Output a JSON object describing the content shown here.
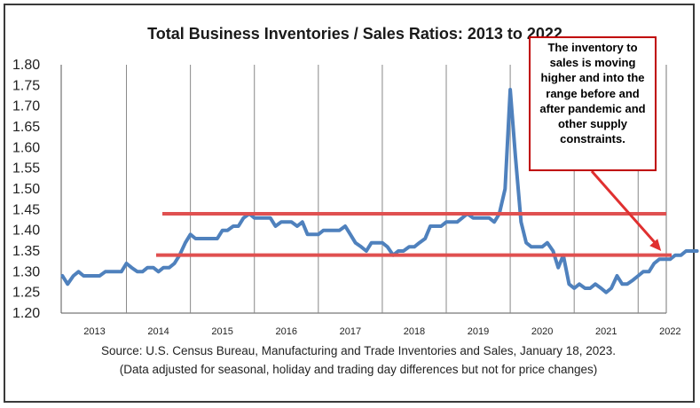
{
  "chart_data": {
    "type": "line",
    "title": "Total Business Inventories / Sales Ratios: 2013 to 2022",
    "xlabel": "",
    "ylabel": "",
    "ylim": [
      1.2,
      1.8
    ],
    "yticks": [
      "1.80",
      "1.75",
      "1.70",
      "1.65",
      "1.60",
      "1.55",
      "1.50",
      "1.45",
      "1.40",
      "1.35",
      "1.30",
      "1.25",
      "1.20"
    ],
    "xticks": [
      "2013",
      "2014",
      "2015",
      "2016",
      "2017",
      "2018",
      "2019",
      "2020",
      "2021",
      "2022"
    ],
    "grid": "vertical lines between years",
    "series": [
      {
        "color": "#4f81bd",
        "x": [
          2013.0,
          2013.08,
          2013.17,
          2013.25,
          2013.33,
          2013.42,
          2013.5,
          2013.58,
          2013.67,
          2013.75,
          2013.83,
          2013.92,
          2014.0,
          2014.08,
          2014.17,
          2014.25,
          2014.33,
          2014.42,
          2014.5,
          2014.58,
          2014.67,
          2014.75,
          2014.83,
          2014.92,
          2015.0,
          2015.08,
          2015.17,
          2015.25,
          2015.33,
          2015.42,
          2015.5,
          2015.58,
          2015.67,
          2015.75,
          2015.83,
          2015.92,
          2016.0,
          2016.08,
          2016.17,
          2016.25,
          2016.33,
          2016.42,
          2016.5,
          2016.58,
          2016.67,
          2016.75,
          2016.83,
          2016.92,
          2017.0,
          2017.08,
          2017.17,
          2017.25,
          2017.33,
          2017.42,
          2017.5,
          2017.58,
          2017.67,
          2017.75,
          2017.83,
          2017.92,
          2018.0,
          2018.08,
          2018.17,
          2018.25,
          2018.33,
          2018.42,
          2018.5,
          2018.58,
          2018.67,
          2018.75,
          2018.83,
          2018.92,
          2019.0,
          2019.08,
          2019.17,
          2019.25,
          2019.33,
          2019.42,
          2019.5,
          2019.58,
          2019.67,
          2019.75,
          2019.83,
          2019.92,
          2020.0,
          2020.08,
          2020.17,
          2020.25,
          2020.33,
          2020.42,
          2020.5,
          2020.58,
          2020.67,
          2020.75,
          2020.83,
          2020.92,
          2021.0,
          2021.08,
          2021.17,
          2021.25,
          2021.33,
          2021.42,
          2021.5,
          2021.58,
          2021.67,
          2021.75,
          2021.83,
          2021.92,
          2022.0,
          2022.08,
          2022.17,
          2022.25,
          2022.33,
          2022.42,
          2022.5,
          2022.58,
          2022.67,
          2022.75,
          2022.83,
          2022.92
        ],
        "y": [
          1.29,
          1.27,
          1.29,
          1.3,
          1.29,
          1.29,
          1.29,
          1.29,
          1.3,
          1.3,
          1.3,
          1.3,
          1.32,
          1.31,
          1.3,
          1.3,
          1.31,
          1.31,
          1.3,
          1.31,
          1.31,
          1.32,
          1.34,
          1.37,
          1.39,
          1.38,
          1.38,
          1.38,
          1.38,
          1.38,
          1.4,
          1.4,
          1.41,
          1.41,
          1.43,
          1.44,
          1.43,
          1.43,
          1.43,
          1.43,
          1.41,
          1.42,
          1.42,
          1.42,
          1.41,
          1.42,
          1.39,
          1.39,
          1.39,
          1.4,
          1.4,
          1.4,
          1.4,
          1.41,
          1.39,
          1.37,
          1.36,
          1.35,
          1.37,
          1.37,
          1.37,
          1.36,
          1.34,
          1.35,
          1.35,
          1.36,
          1.36,
          1.37,
          1.38,
          1.41,
          1.41,
          1.41,
          1.42,
          1.42,
          1.42,
          1.43,
          1.44,
          1.43,
          1.43,
          1.43,
          1.43,
          1.42,
          1.44,
          1.5,
          1.74,
          1.58,
          1.42,
          1.37,
          1.36,
          1.36,
          1.36,
          1.37,
          1.35,
          1.31,
          1.34,
          1.27,
          1.26,
          1.27,
          1.26,
          1.26,
          1.27,
          1.26,
          1.25,
          1.26,
          1.29,
          1.27,
          1.27,
          1.28,
          1.29,
          1.3,
          1.3,
          1.32,
          1.33,
          1.33,
          1.33,
          1.34,
          1.34,
          1.35,
          1.35,
          1.35
        ]
      }
    ],
    "reference_lines": [
      1.44,
      1.34
    ],
    "annotation": "The inventory to sales is moving higher and into the range before and after pandemic and other supply constraints."
  },
  "source_lines": [
    "Source: U.S. Census Bureau, Manufacturing and Trade Inventories and Sales, January 18, 2023.",
    "(Data adjusted for seasonal, holiday and trading day differences but not for price changes)"
  ],
  "colors": {
    "line": "#4f81bd",
    "reference": "#e05050",
    "callout_border": "#c00000",
    "arrow": "#e03030"
  }
}
